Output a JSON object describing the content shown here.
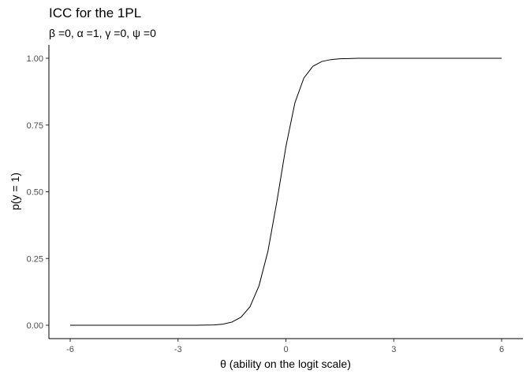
{
  "chart_data": {
    "type": "line",
    "title": "ICC for the 1PL",
    "subtitle": "β =0, α =1, γ =0, ψ =0",
    "xlabel": "θ (ability on the logit scale)",
    "ylabel": "p(y = 1)",
    "xlim": [
      -6,
      6
    ],
    "ylim": [
      0,
      1
    ],
    "x_ticks": [
      -6,
      -3,
      0,
      3,
      6
    ],
    "x_tick_labels": [
      "-6",
      "-3",
      "0",
      "3",
      "6"
    ],
    "y_ticks": [
      0,
      0.25,
      0.5,
      0.75,
      1
    ],
    "y_tick_labels": [
      "0.00",
      "0.25",
      "0.50",
      "0.75",
      "1.00"
    ],
    "grid": false,
    "legend": "none",
    "line_color": "#000000",
    "series": [
      {
        "x": [
          -6,
          -5.5,
          -5,
          -4.5,
          -4,
          -3.5,
          -3,
          -2.5,
          -2,
          -1.75,
          -1.5,
          -1.25,
          -1,
          -0.75,
          -0.5,
          -0.25,
          0,
          0.25,
          0.5,
          0.75,
          1,
          1.25,
          1.5,
          1.75,
          2,
          2.5,
          3,
          3.5,
          4,
          4.5,
          5,
          5.5,
          6
        ],
        "values": [
          0,
          0,
          0,
          0,
          0,
          0,
          0,
          0,
          0.001,
          0.004,
          0.012,
          0.03,
          0.069,
          0.147,
          0.277,
          0.464,
          0.669,
          0.833,
          0.926,
          0.97,
          0.988,
          0.995,
          0.998,
          0.999,
          1,
          1,
          1,
          1,
          1,
          1,
          1,
          1,
          1
        ]
      }
    ]
  }
}
